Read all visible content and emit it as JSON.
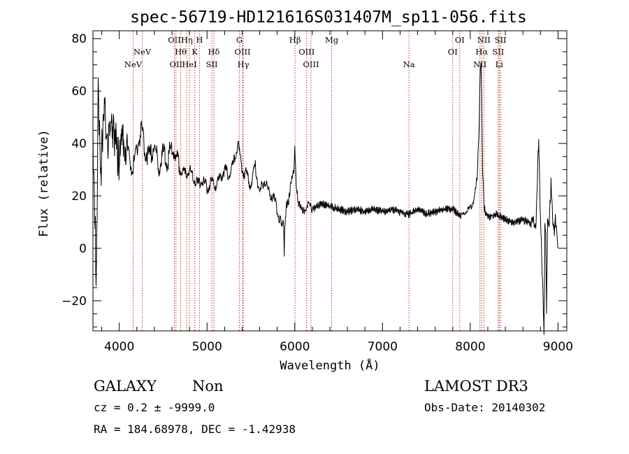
{
  "chart_data": {
    "type": "line",
    "title": "spec-56719-HD121616S031407M_sp11-056.fits",
    "xlabel": "Wavelength (Å)",
    "ylabel": "Flux (relative)",
    "xlim": [
      3700,
      9100
    ],
    "ylim": [
      -31.5,
      83
    ],
    "xticks": [
      4000,
      5000,
      6000,
      7000,
      8000,
      9000
    ],
    "yticks": [
      -20,
      0,
      20,
      40,
      60,
      80
    ],
    "series": [
      {
        "name": "spectrum",
        "x": [
          3700,
          3720,
          3740,
          3760,
          3790,
          3830,
          3880,
          3930,
          3970,
          4000,
          4050,
          4100,
          4150,
          4200,
          4250,
          4300,
          4350,
          4400,
          4450,
          4500,
          4550,
          4600,
          4650,
          4700,
          4750,
          4800,
          4850,
          4900,
          4950,
          5000,
          5050,
          5100,
          5150,
          5200,
          5250,
          5300,
          5350,
          5400,
          5450,
          5500,
          5550,
          5600,
          5650,
          5700,
          5750,
          5800,
          5850,
          5870,
          5880,
          5890,
          5900,
          5930,
          5960,
          5990,
          6000,
          6010,
          6020,
          6040,
          6070,
          6100,
          6150,
          6200,
          6300,
          6400,
          6500,
          6600,
          6700,
          6800,
          6900,
          7000,
          7100,
          7200,
          7300,
          7400,
          7500,
          7600,
          7700,
          7800,
          7900,
          7950,
          8000,
          8050,
          8080,
          8100,
          8110,
          8120,
          8130,
          8140,
          8160,
          8200,
          8300,
          8400,
          8500,
          8600,
          8700,
          8750,
          8780,
          8800,
          8810,
          8820,
          8830,
          8840,
          8850,
          8860,
          8870,
          8880,
          8890,
          8900,
          8920,
          8950,
          8970,
          8990,
          9000
        ],
        "values": [
          40,
          15,
          -14,
          60,
          30,
          55,
          40,
          48,
          38,
          33,
          42,
          35,
          30,
          38,
          45,
          37,
          35,
          40,
          30,
          36,
          33,
          40,
          34,
          30,
          28,
          30,
          27,
          24,
          26,
          23,
          25,
          24,
          27,
          30,
          28,
          32,
          40,
          30,
          28,
          24,
          31,
          21,
          26,
          22,
          20,
          15,
          8,
          10,
          -3,
          11,
          16,
          18,
          26,
          30,
          38,
          30,
          23,
          17,
          16,
          14,
          17,
          15,
          17,
          16,
          15,
          14,
          15,
          14,
          15,
          14,
          15,
          14,
          13,
          15,
          13,
          14,
          15,
          15,
          12,
          14,
          15,
          20,
          28,
          45,
          65,
          70,
          60,
          30,
          15,
          12,
          13,
          11,
          10,
          11,
          9,
          10,
          43,
          10,
          5,
          -12,
          -20,
          -30,
          8,
          5,
          -22,
          10,
          8,
          10,
          25,
          5,
          10,
          5,
          0
        ]
      }
    ],
    "emission_lines": [
      {
        "label": "NeV",
        "x": 4158,
        "row": 2
      },
      {
        "label": "NeV",
        "x": 4262,
        "row": 1
      },
      {
        "label": "OII",
        "x": 4628,
        "row": 0
      },
      {
        "label": "OII",
        "x": 4646,
        "row": 2
      },
      {
        "label": "Hθ",
        "x": 4700,
        "row": 1
      },
      {
        "label": "Hη",
        "x": 4770,
        "row": 0
      },
      {
        "label": "HeI",
        "x": 4800,
        "row": 2
      },
      {
        "label": "K",
        "x": 4860,
        "row": 1
      },
      {
        "label": "H",
        "x": 4915,
        "row": 0
      },
      {
        "label": "SII",
        "x": 5055,
        "row": 2
      },
      {
        "label": "Hδ",
        "x": 5078,
        "row": 1
      },
      {
        "label": "G",
        "x": 5368,
        "row": 0
      },
      {
        "label": "OIII",
        "x": 5405,
        "row": 1
      },
      {
        "label": "Hγ",
        "x": 5413,
        "row": 2
      },
      {
        "label": "Hβ",
        "x": 6003,
        "row": 0
      },
      {
        "label": "OIII",
        "x": 6135,
        "row": 1
      },
      {
        "label": "OIII",
        "x": 6185,
        "row": 2
      },
      {
        "label": "Mg",
        "x": 6420,
        "row": 0
      },
      {
        "label": "Na",
        "x": 7302,
        "row": 2
      },
      {
        "label": "OI",
        "x": 7800,
        "row": 1
      },
      {
        "label": "OI",
        "x": 7880,
        "row": 0
      },
      {
        "label": "NII",
        "x": 8110,
        "row": 2
      },
      {
        "label": "Hα",
        "x": 8130,
        "row": 1
      },
      {
        "label": "NII",
        "x": 8155,
        "row": 0
      },
      {
        "label": "SII",
        "x": 8318,
        "row": 1
      },
      {
        "label": "Li",
        "x": 8330,
        "row": 2
      },
      {
        "label": "SII",
        "x": 8345,
        "row": 0
      }
    ]
  },
  "info": {
    "class_label": "GALAXY",
    "subclass_label": "Non",
    "survey": "LAMOST DR3",
    "cz": "cz = 0.2 ± -9999.0",
    "obs_date": "Obs-Date: 20140302",
    "coords": "RA = 184.68978, DEC =  -1.42938"
  },
  "colors": {
    "line_marker": "#c0392b",
    "spectrum": "#000000",
    "axes": "#000000"
  }
}
